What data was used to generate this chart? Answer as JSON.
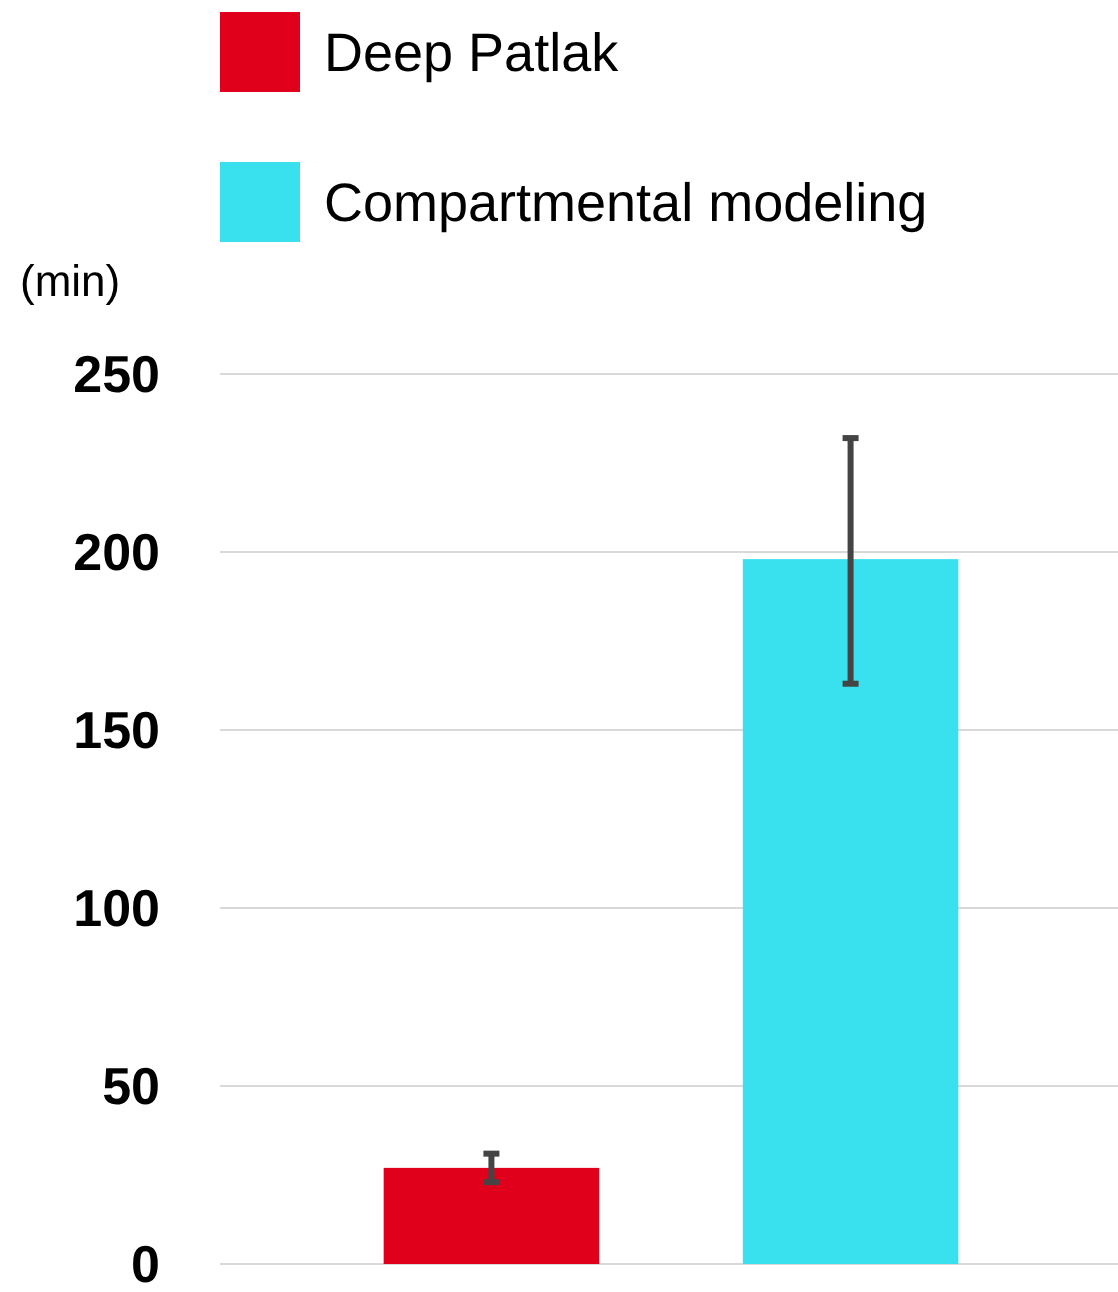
{
  "chart_data": {
    "type": "bar",
    "ylabel": "(min)",
    "categories": [
      null,
      null
    ],
    "series": [
      {
        "name": "Deep Patlak",
        "color": "#e0001b",
        "values": [
          27,
          null
        ],
        "errors": [
          [
            23,
            31
          ],
          null
        ]
      },
      {
        "name": "Compartmental modeling",
        "color": "#38e1ed",
        "values": [
          null,
          198
        ],
        "errors": [
          null,
          [
            163,
            232
          ]
        ]
      }
    ],
    "ylim": [
      0,
      250
    ],
    "yticks": [
      0,
      50,
      100,
      150,
      200,
      250
    ],
    "grid": "y",
    "legend": "top",
    "tick_labels": "y"
  }
}
